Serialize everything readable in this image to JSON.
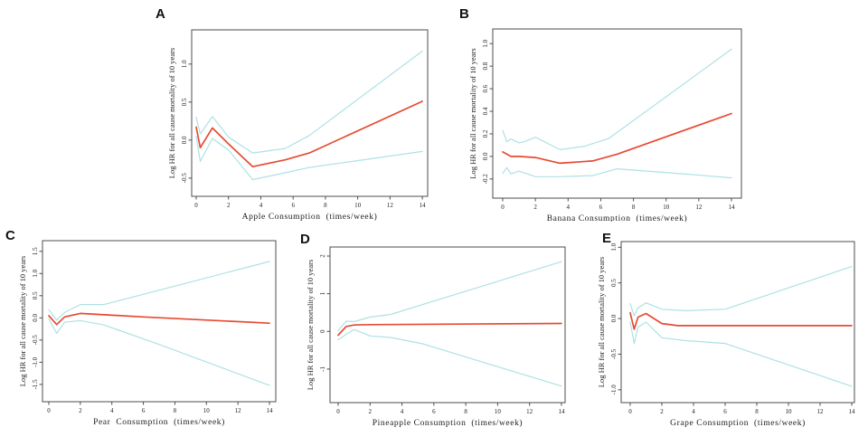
{
  "figure_title": "",
  "colors": {
    "estimate_line": "#e74a33",
    "ci_line": "#aee1e3",
    "axis": "#4d4d4d",
    "text": "#1c1c1c"
  },
  "chart_data": [
    {
      "type": "line",
      "panel_label": "A",
      "xlabel": "Apple Consumption  (times/week)",
      "ylabel": "Log HR for all cause mortality of 10 years",
      "xlim": [
        -0.28,
        14.33
      ],
      "ylim": [
        -0.74,
        1.45
      ],
      "xticks": [
        0,
        2,
        4,
        6,
        8,
        10,
        12,
        14
      ],
      "xtick_labels": [
        "0",
        "2",
        "4",
        "6",
        "8",
        "10",
        "12",
        "14"
      ],
      "yticks": [
        -0.5,
        0.0,
        0.5,
        1.0
      ],
      "ytick_labels": [
        "-0.5",
        "0.0",
        "0.5",
        "1.0"
      ],
      "grid": false,
      "series": [
        {
          "name": "upper_95ci",
          "role": "ci",
          "x": [
            0,
            0.25,
            1,
            2,
            3.5,
            5.5,
            7,
            14
          ],
          "y": [
            0.3,
            0.08,
            0.31,
            0.04,
            -0.17,
            -0.11,
            0.06,
            1.17
          ]
        },
        {
          "name": "lower_95ci",
          "role": "ci",
          "x": [
            0,
            0.25,
            1,
            2,
            3.5,
            5.5,
            7,
            14
          ],
          "y": [
            0.05,
            -0.28,
            0.02,
            -0.13,
            -0.52,
            -0.43,
            -0.36,
            -0.15
          ]
        },
        {
          "name": "estimate",
          "role": "estimate",
          "x": [
            0,
            0.25,
            1,
            2,
            3.5,
            5.5,
            7,
            14
          ],
          "y": [
            0.17,
            -0.1,
            0.16,
            -0.05,
            -0.35,
            -0.26,
            -0.17,
            0.51
          ]
        }
      ]
    },
    {
      "type": "line",
      "panel_label": "B",
      "xlabel": "Banana Consumption  (times/week)",
      "ylabel": "Log HR for all cause mortality of 10 years",
      "xlim": [
        -0.61,
        14.61
      ],
      "ylim": [
        -0.37,
        1.13
      ],
      "xticks": [
        0,
        2,
        4,
        6,
        8,
        10,
        12,
        14
      ],
      "xtick_labels": [
        "0",
        "2",
        "4",
        "6",
        "8",
        "10",
        "12",
        "14"
      ],
      "yticks": [
        -0.2,
        0.0,
        0.2,
        0.4,
        0.6,
        0.8,
        1.0
      ],
      "ytick_labels": [
        "-0.2",
        "0.0",
        "0.2",
        "0.4",
        "0.6",
        "0.8",
        "1.0"
      ],
      "grid": false,
      "series": [
        {
          "name": "upper_95ci",
          "role": "ci",
          "x": [
            0,
            0.25,
            0.5,
            1,
            1.3,
            2,
            3.5,
            5,
            6.5,
            14
          ],
          "y": [
            0.23,
            0.13,
            0.155,
            0.12,
            0.13,
            0.17,
            0.06,
            0.09,
            0.16,
            0.95
          ]
        },
        {
          "name": "lower_95ci",
          "role": "ci",
          "x": [
            0,
            0.25,
            0.5,
            1,
            2,
            3.5,
            5.5,
            7,
            11.5,
            14
          ],
          "y": [
            -0.15,
            -0.1,
            -0.155,
            -0.13,
            -0.18,
            -0.18,
            -0.17,
            -0.11,
            -0.16,
            -0.19
          ]
        },
        {
          "name": "estimate",
          "role": "estimate",
          "x": [
            0,
            0.5,
            1,
            2,
            3.5,
            5.5,
            7,
            14
          ],
          "y": [
            0.04,
            0.0,
            0.0,
            -0.01,
            -0.06,
            -0.04,
            0.02,
            0.38
          ]
        }
      ]
    },
    {
      "type": "line",
      "panel_label": "C",
      "xlabel": "Pear  Consumption  (times/week)",
      "ylabel": "Log HR for all cause mortality of 10 years",
      "xlim": [
        -0.4,
        14.4
      ],
      "ylim": [
        -1.89,
        1.74
      ],
      "xticks": [
        0,
        2,
        4,
        6,
        8,
        10,
        12,
        14
      ],
      "xtick_labels": [
        "0",
        "2",
        "4",
        "6",
        "8",
        "10",
        "12",
        "14"
      ],
      "yticks": [
        -1.5,
        -1.0,
        -0.5,
        0.0,
        0.5,
        1.0,
        1.5
      ],
      "ytick_labels": [
        "-1.5",
        "-1.0",
        "-0.5",
        "0.0",
        "0.5",
        "1.0",
        "1.5"
      ],
      "grid": false,
      "series": [
        {
          "name": "upper_95ci",
          "role": "ci",
          "x": [
            0,
            0.5,
            1,
            2,
            3.5,
            14
          ],
          "y": [
            0.18,
            -0.05,
            0.12,
            0.3,
            0.3,
            1.27
          ]
        },
        {
          "name": "lower_95ci",
          "role": "ci",
          "x": [
            0,
            0.5,
            1,
            2,
            3.5,
            7,
            14
          ],
          "y": [
            -0.02,
            -0.35,
            -0.1,
            -0.06,
            -0.16,
            -0.6,
            -1.52
          ]
        },
        {
          "name": "estimate",
          "role": "estimate",
          "x": [
            0,
            0.5,
            1,
            2,
            6,
            14
          ],
          "y": [
            0.05,
            -0.15,
            0.02,
            0.1,
            0.02,
            -0.12
          ]
        }
      ]
    },
    {
      "type": "line",
      "panel_label": "D",
      "xlabel": "Pineapple Consumption  (times/week)",
      "ylabel": "Log HR for all cause mortality of 10 years",
      "xlim": [
        -0.51,
        14.23
      ],
      "ylim": [
        -1.89,
        2.24
      ],
      "xticks": [
        0,
        2,
        4,
        6,
        8,
        10,
        12,
        14
      ],
      "xtick_labels": [
        "0",
        "2",
        "4",
        "6",
        "8",
        "10",
        "12",
        "14"
      ],
      "yticks": [
        -1,
        0,
        1,
        2
      ],
      "ytick_labels": [
        "-1",
        "0",
        "1",
        "2"
      ],
      "grid": false,
      "series": [
        {
          "name": "upper_95ci",
          "role": "ci",
          "x": [
            0,
            0.5,
            1,
            2,
            3.3,
            14
          ],
          "y": [
            0.02,
            0.27,
            0.26,
            0.38,
            0.45,
            1.85
          ]
        },
        {
          "name": "lower_95ci",
          "role": "ci",
          "x": [
            0,
            0.5,
            1,
            2,
            3.3,
            5.3,
            14
          ],
          "y": [
            -0.22,
            -0.08,
            0.05,
            -0.12,
            -0.16,
            -0.33,
            -1.45
          ]
        },
        {
          "name": "estimate",
          "role": "estimate",
          "x": [
            0,
            0.5,
            1,
            2,
            14
          ],
          "y": [
            -0.1,
            0.13,
            0.17,
            0.18,
            0.21
          ]
        }
      ]
    },
    {
      "type": "line",
      "panel_label": "E",
      "xlabel": "Grape Consumption  (times/week)",
      "ylabel": "Log HR for all cause mortality of 10 years",
      "xlim": [
        -0.57,
        14.17
      ],
      "ylim": [
        -1.18,
        1.08
      ],
      "xticks": [
        0,
        2,
        4,
        6,
        8,
        10,
        12,
        14
      ],
      "xtick_labels": [
        "0",
        "2",
        "4",
        "6",
        "8",
        "10",
        "12",
        "14"
      ],
      "yticks": [
        -1.0,
        -0.5,
        0.0,
        0.5,
        1.0
      ],
      "ytick_labels": [
        "-1.0",
        "-0.5",
        "0.0",
        "0.5",
        "1.0"
      ],
      "grid": false,
      "series": [
        {
          "name": "upper_95ci",
          "role": "ci",
          "x": [
            0,
            0.25,
            0.5,
            1,
            2,
            3.5,
            6,
            14
          ],
          "y": [
            0.21,
            0.04,
            0.15,
            0.22,
            0.13,
            0.11,
            0.13,
            0.73
          ]
        },
        {
          "name": "lower_95ci",
          "role": "ci",
          "x": [
            0,
            0.25,
            0.5,
            1,
            2,
            3.5,
            6,
            14
          ],
          "y": [
            -0.05,
            -0.35,
            -0.12,
            -0.05,
            -0.27,
            -0.31,
            -0.35,
            -0.95
          ]
        },
        {
          "name": "estimate",
          "role": "estimate",
          "x": [
            0,
            0.25,
            0.5,
            1,
            2,
            3,
            14
          ],
          "y": [
            0.08,
            -0.15,
            0.02,
            0.07,
            -0.07,
            -0.1,
            -0.1
          ]
        }
      ]
    }
  ]
}
